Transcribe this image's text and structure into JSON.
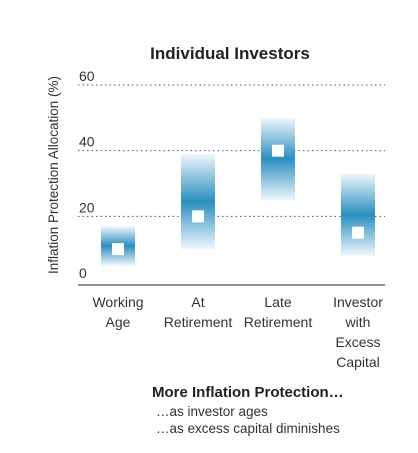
{
  "chart_data": {
    "type": "range-bar",
    "title": "Individual Investors",
    "ylabel": "Inflation Protection Allocation (%)",
    "xlabel": "",
    "ylim": [
      0,
      60
    ],
    "yticks": [
      "0",
      "20",
      "40",
      "60"
    ],
    "grid": true,
    "categories": [
      "Working Age",
      "At Retirement",
      "Late Retirement",
      "Investor with Excess Capital"
    ],
    "category_lines": [
      [
        "Working",
        "Age"
      ],
      [
        "At",
        "Retirement"
      ],
      [
        "Late",
        "Retirement"
      ],
      [
        "Investor",
        "with",
        "Excess",
        "Capital"
      ]
    ],
    "ranges": [
      {
        "low": 5,
        "high": 17,
        "point": 10
      },
      {
        "low": 10,
        "high": 39,
        "point": 20
      },
      {
        "low": 25,
        "high": 50,
        "point": 40
      },
      {
        "low": 8,
        "high": 33,
        "point": 15
      }
    ],
    "colors": {
      "bar_dark": "#2b8fc0",
      "bar_light": "#eef7fc",
      "marker": "#ffffff"
    }
  },
  "notes": {
    "heading": "More Inflation Protection…",
    "lines": [
      "…as investor ages",
      "…as excess capital diminishes"
    ]
  }
}
